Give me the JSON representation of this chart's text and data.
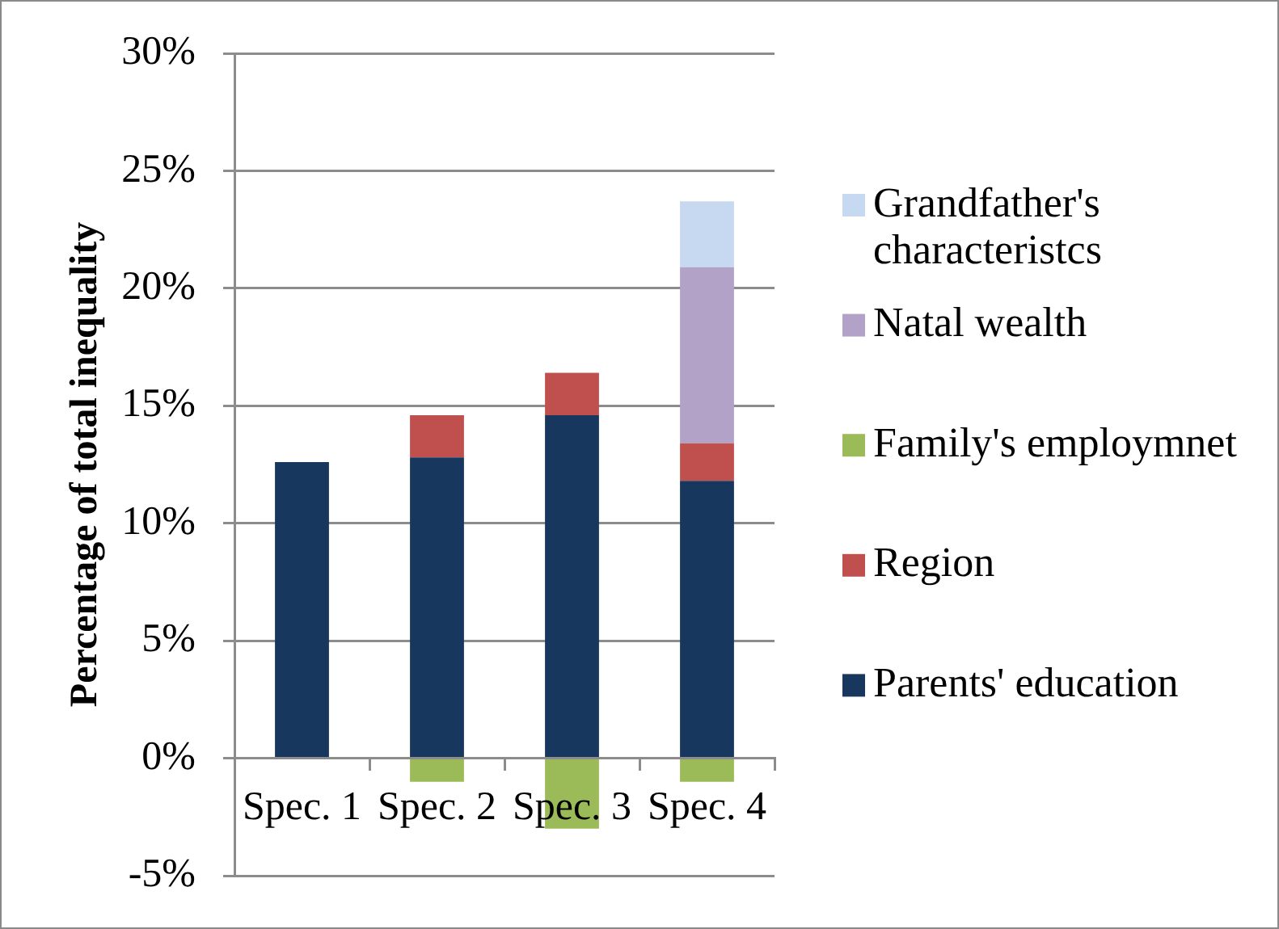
{
  "chart_data": {
    "type": "bar",
    "stacked": true,
    "ylabel": "Percentage of total inequality",
    "categories": [
      "Spec. 1",
      "Spec. 2",
      "Spec. 3",
      "Spec. 4"
    ],
    "series": [
      {
        "name": "Parents' education",
        "color": "#17375e",
        "values": [
          12.6,
          12.8,
          14.6,
          11.8
        ]
      },
      {
        "name": "Region",
        "color": "#c0504d",
        "values": [
          null,
          1.8,
          1.8,
          1.6
        ]
      },
      {
        "name": "Family's employmnet",
        "color": "#9bbb59",
        "values": [
          null,
          -1.0,
          -3.0,
          -1.0
        ]
      },
      {
        "name": "Natal wealth",
        "color": "#b3a2c7",
        "values": [
          null,
          null,
          null,
          7.5
        ]
      },
      {
        "name": "Grandfather's characteristcs",
        "color": "#c6d9f1",
        "values": [
          null,
          null,
          null,
          2.8
        ]
      }
    ],
    "ylim": [
      -5,
      30
    ],
    "yticks": [
      {
        "value": -5,
        "label": "-5%"
      },
      {
        "value": 0,
        "label": "0%"
      },
      {
        "value": 5,
        "label": "5%"
      },
      {
        "value": 10,
        "label": "10%"
      },
      {
        "value": 15,
        "label": "15%"
      },
      {
        "value": 20,
        "label": "20%"
      },
      {
        "value": 25,
        "label": "25%"
      },
      {
        "value": 30,
        "label": "30%"
      }
    ],
    "grid": "y",
    "legend": "right"
  }
}
